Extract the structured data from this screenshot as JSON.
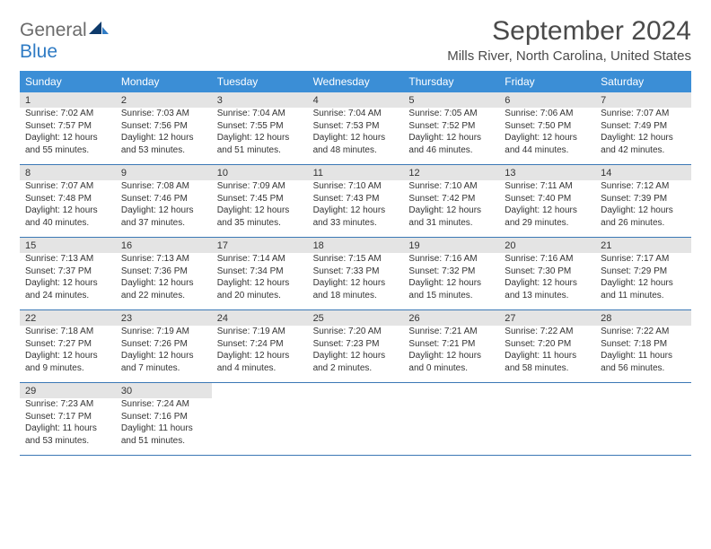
{
  "logo": {
    "word1": "General",
    "word2": "Blue"
  },
  "title": "September 2024",
  "location": "Mills River, North Carolina, United States",
  "colors": {
    "header_bg": "#3b8ed6",
    "daynum_bg": "#e4e4e4",
    "border": "#3b78b5",
    "logo_blue": "#2f7bc4",
    "logo_gray": "#6b6b6b",
    "logo_navy": "#0d3a6b"
  },
  "dayNames": [
    "Sunday",
    "Monday",
    "Tuesday",
    "Wednesday",
    "Thursday",
    "Friday",
    "Saturday"
  ],
  "weeks": [
    [
      {
        "n": "1",
        "sr": "Sunrise: 7:02 AM",
        "ss": "Sunset: 7:57 PM",
        "d1": "Daylight: 12 hours",
        "d2": "and 55 minutes."
      },
      {
        "n": "2",
        "sr": "Sunrise: 7:03 AM",
        "ss": "Sunset: 7:56 PM",
        "d1": "Daylight: 12 hours",
        "d2": "and 53 minutes."
      },
      {
        "n": "3",
        "sr": "Sunrise: 7:04 AM",
        "ss": "Sunset: 7:55 PM",
        "d1": "Daylight: 12 hours",
        "d2": "and 51 minutes."
      },
      {
        "n": "4",
        "sr": "Sunrise: 7:04 AM",
        "ss": "Sunset: 7:53 PM",
        "d1": "Daylight: 12 hours",
        "d2": "and 48 minutes."
      },
      {
        "n": "5",
        "sr": "Sunrise: 7:05 AM",
        "ss": "Sunset: 7:52 PM",
        "d1": "Daylight: 12 hours",
        "d2": "and 46 minutes."
      },
      {
        "n": "6",
        "sr": "Sunrise: 7:06 AM",
        "ss": "Sunset: 7:50 PM",
        "d1": "Daylight: 12 hours",
        "d2": "and 44 minutes."
      },
      {
        "n": "7",
        "sr": "Sunrise: 7:07 AM",
        "ss": "Sunset: 7:49 PM",
        "d1": "Daylight: 12 hours",
        "d2": "and 42 minutes."
      }
    ],
    [
      {
        "n": "8",
        "sr": "Sunrise: 7:07 AM",
        "ss": "Sunset: 7:48 PM",
        "d1": "Daylight: 12 hours",
        "d2": "and 40 minutes."
      },
      {
        "n": "9",
        "sr": "Sunrise: 7:08 AM",
        "ss": "Sunset: 7:46 PM",
        "d1": "Daylight: 12 hours",
        "d2": "and 37 minutes."
      },
      {
        "n": "10",
        "sr": "Sunrise: 7:09 AM",
        "ss": "Sunset: 7:45 PM",
        "d1": "Daylight: 12 hours",
        "d2": "and 35 minutes."
      },
      {
        "n": "11",
        "sr": "Sunrise: 7:10 AM",
        "ss": "Sunset: 7:43 PM",
        "d1": "Daylight: 12 hours",
        "d2": "and 33 minutes."
      },
      {
        "n": "12",
        "sr": "Sunrise: 7:10 AM",
        "ss": "Sunset: 7:42 PM",
        "d1": "Daylight: 12 hours",
        "d2": "and 31 minutes."
      },
      {
        "n": "13",
        "sr": "Sunrise: 7:11 AM",
        "ss": "Sunset: 7:40 PM",
        "d1": "Daylight: 12 hours",
        "d2": "and 29 minutes."
      },
      {
        "n": "14",
        "sr": "Sunrise: 7:12 AM",
        "ss": "Sunset: 7:39 PM",
        "d1": "Daylight: 12 hours",
        "d2": "and 26 minutes."
      }
    ],
    [
      {
        "n": "15",
        "sr": "Sunrise: 7:13 AM",
        "ss": "Sunset: 7:37 PM",
        "d1": "Daylight: 12 hours",
        "d2": "and 24 minutes."
      },
      {
        "n": "16",
        "sr": "Sunrise: 7:13 AM",
        "ss": "Sunset: 7:36 PM",
        "d1": "Daylight: 12 hours",
        "d2": "and 22 minutes."
      },
      {
        "n": "17",
        "sr": "Sunrise: 7:14 AM",
        "ss": "Sunset: 7:34 PM",
        "d1": "Daylight: 12 hours",
        "d2": "and 20 minutes."
      },
      {
        "n": "18",
        "sr": "Sunrise: 7:15 AM",
        "ss": "Sunset: 7:33 PM",
        "d1": "Daylight: 12 hours",
        "d2": "and 18 minutes."
      },
      {
        "n": "19",
        "sr": "Sunrise: 7:16 AM",
        "ss": "Sunset: 7:32 PM",
        "d1": "Daylight: 12 hours",
        "d2": "and 15 minutes."
      },
      {
        "n": "20",
        "sr": "Sunrise: 7:16 AM",
        "ss": "Sunset: 7:30 PM",
        "d1": "Daylight: 12 hours",
        "d2": "and 13 minutes."
      },
      {
        "n": "21",
        "sr": "Sunrise: 7:17 AM",
        "ss": "Sunset: 7:29 PM",
        "d1": "Daylight: 12 hours",
        "d2": "and 11 minutes."
      }
    ],
    [
      {
        "n": "22",
        "sr": "Sunrise: 7:18 AM",
        "ss": "Sunset: 7:27 PM",
        "d1": "Daylight: 12 hours",
        "d2": "and 9 minutes."
      },
      {
        "n": "23",
        "sr": "Sunrise: 7:19 AM",
        "ss": "Sunset: 7:26 PM",
        "d1": "Daylight: 12 hours",
        "d2": "and 7 minutes."
      },
      {
        "n": "24",
        "sr": "Sunrise: 7:19 AM",
        "ss": "Sunset: 7:24 PM",
        "d1": "Daylight: 12 hours",
        "d2": "and 4 minutes."
      },
      {
        "n": "25",
        "sr": "Sunrise: 7:20 AM",
        "ss": "Sunset: 7:23 PM",
        "d1": "Daylight: 12 hours",
        "d2": "and 2 minutes."
      },
      {
        "n": "26",
        "sr": "Sunrise: 7:21 AM",
        "ss": "Sunset: 7:21 PM",
        "d1": "Daylight: 12 hours",
        "d2": "and 0 minutes."
      },
      {
        "n": "27",
        "sr": "Sunrise: 7:22 AM",
        "ss": "Sunset: 7:20 PM",
        "d1": "Daylight: 11 hours",
        "d2": "and 58 minutes."
      },
      {
        "n": "28",
        "sr": "Sunrise: 7:22 AM",
        "ss": "Sunset: 7:18 PM",
        "d1": "Daylight: 11 hours",
        "d2": "and 56 minutes."
      }
    ],
    [
      {
        "n": "29",
        "sr": "Sunrise: 7:23 AM",
        "ss": "Sunset: 7:17 PM",
        "d1": "Daylight: 11 hours",
        "d2": "and 53 minutes."
      },
      {
        "n": "30",
        "sr": "Sunrise: 7:24 AM",
        "ss": "Sunset: 7:16 PM",
        "d1": "Daylight: 11 hours",
        "d2": "and 51 minutes."
      },
      null,
      null,
      null,
      null,
      null
    ]
  ]
}
